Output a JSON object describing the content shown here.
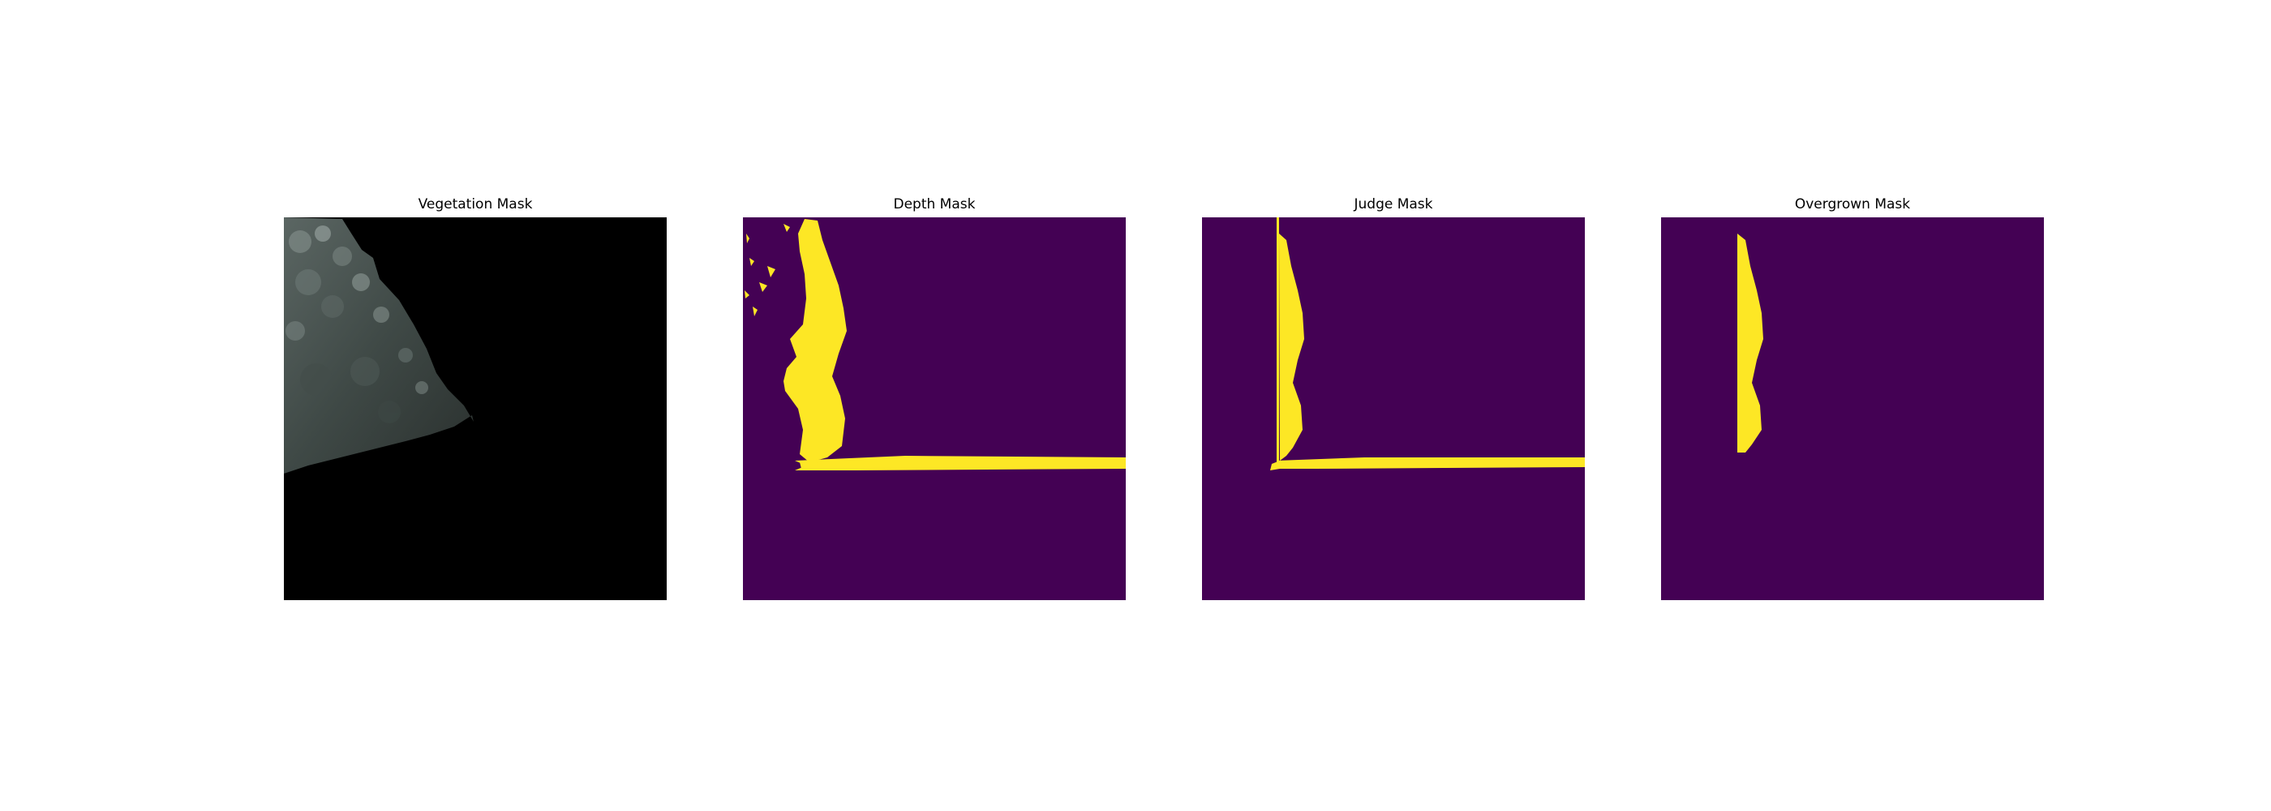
{
  "panels": [
    {
      "title": "Vegetation Mask"
    },
    {
      "title": "Depth Mask"
    },
    {
      "title": "Judge Mask"
    },
    {
      "title": "Overgrown Mask"
    }
  ],
  "colors": {
    "mask_background": "#440154",
    "mask_foreground": "#fde725",
    "rgb_background": "#000000",
    "vegetation_dark": "#2f3634",
    "vegetation_mid": "#4d5755",
    "vegetation_light": "#8a9692"
  }
}
